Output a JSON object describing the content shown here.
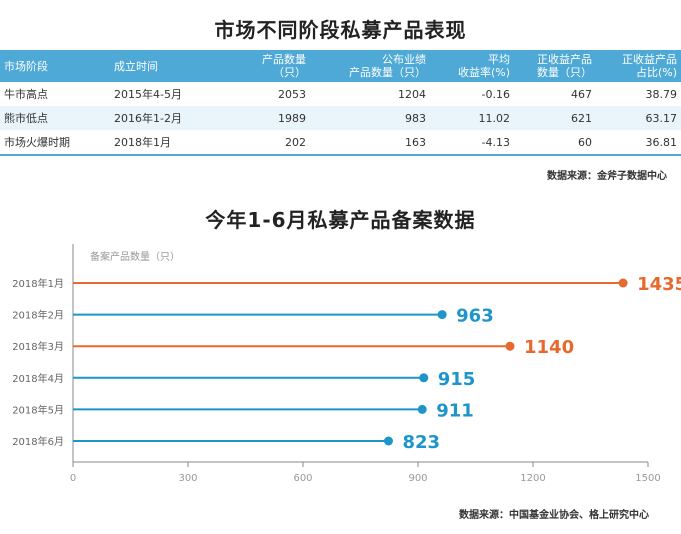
{
  "table": {
    "title": "市场不同阶段私募产品表现",
    "headers": [
      [
        "市场阶段"
      ],
      [
        "成立时间"
      ],
      [
        "产品数量",
        "（只）"
      ],
      [
        "公布业绩",
        "产品数量（只）"
      ],
      [
        "平均",
        "收益率(%)"
      ],
      [
        "正收益产品",
        "数量（只）"
      ],
      [
        "正收益产品",
        "占比(%)"
      ]
    ],
    "rows": [
      [
        "牛市高点",
        "2015年4-5月",
        "2053",
        "1204",
        "-0.16",
        "467",
        "38.79"
      ],
      [
        "熊市低点",
        "2016年1-2月",
        "1989",
        "983",
        "11.02",
        "621",
        "63.17"
      ],
      [
        "市场火爆时期",
        "2018年1月",
        "202",
        "163",
        "-4.13",
        "60",
        "36.81"
      ]
    ],
    "source": "数据来源：金斧子数据中心"
  },
  "chart_data": {
    "type": "bar",
    "title": "今年1-6月私募产品备案数据",
    "series_label": "备案产品数量（只）",
    "categories": [
      "2018年1月",
      "2018年2月",
      "2018年3月",
      "2018年4月",
      "2018年5月",
      "2018年6月"
    ],
    "values": [
      1435,
      963,
      1140,
      915,
      911,
      823
    ],
    "highlight": [
      true,
      false,
      true,
      false,
      false,
      false
    ],
    "xlim": [
      0,
      1500
    ],
    "xticks": [
      0,
      300,
      600,
      900,
      1200,
      1500
    ],
    "source": "数据来源：中国基金业协会、格上研究中心",
    "colors": {
      "highlight": "#e8692d",
      "normal": "#1d95c9",
      "axis": "#888888",
      "tick": "#999999"
    }
  }
}
